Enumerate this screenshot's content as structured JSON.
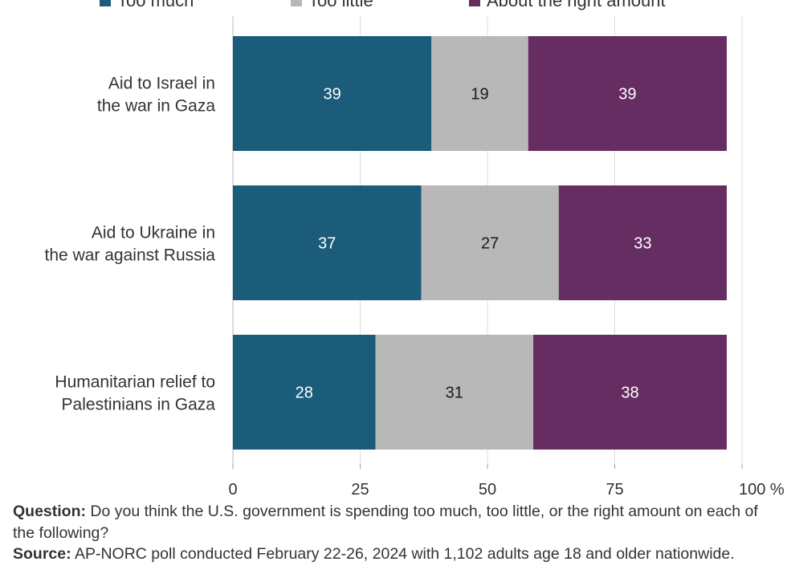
{
  "chart_data": {
    "type": "bar",
    "orientation": "horizontal",
    "stacked": true,
    "categories": [
      [
        "Aid to Israel in",
        "the war in Gaza"
      ],
      [
        "Aid to Ukraine in",
        "the war against Russia"
      ],
      [
        "Humanitarian relief to",
        "Palestinians in Gaza"
      ]
    ],
    "series": [
      {
        "name": "Too much",
        "color": "#1a5c7a",
        "label_color": "#ffffff",
        "values": [
          39,
          37,
          28
        ]
      },
      {
        "name": "Too little",
        "color": "#b8b8b8",
        "label_color": "#1a1a1a",
        "values": [
          19,
          27,
          31
        ]
      },
      {
        "name": "About the right amount",
        "color": "#652d62",
        "label_color": "#ffffff",
        "values": [
          39,
          33,
          38
        ]
      }
    ],
    "xlim": [
      0,
      100
    ],
    "xticks": [
      0,
      25,
      50,
      75,
      100
    ],
    "xtick_labels": [
      "0",
      "25",
      "50",
      "75",
      "100 %"
    ],
    "grid": true,
    "legend": "top"
  },
  "footer": {
    "question_label": "Question:",
    "question_text": "Do you think the U.S. government is spending too much, too little, or the right amount on each of the following?",
    "source_label": "Source:",
    "source_text": "AP-NORC poll conducted February 22-26, 2024 with 1,102 adults age 18 and older nationwide."
  }
}
